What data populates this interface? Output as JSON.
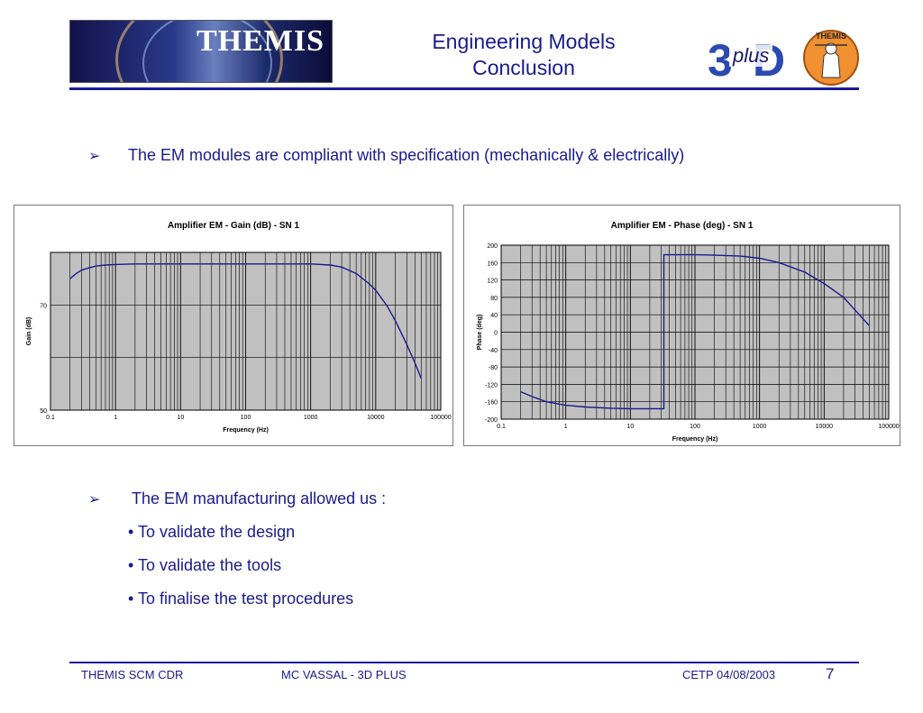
{
  "header": {
    "logo_text": "THEMIS",
    "title_line1": "Engineering Models",
    "title_line2": "Conclusion",
    "partner_logo_text": "plus",
    "mascot_logo_text": "THEMIS"
  },
  "bullets": {
    "first": "The EM modules are compliant with specification (mechanically & electrically)",
    "second": "The EM manufacturing allowed us :",
    "sub_items": [
      "• To validate the design",
      "• To validate the tools",
      "• To finalise the test procedures"
    ]
  },
  "footer": {
    "left": "THEMIS SCM CDR",
    "center": "MC VASSAL  - 3D PLUS",
    "right": "CETP 04/08/2003",
    "page": "7"
  },
  "colors": {
    "text": "#1a1a8c",
    "rule": "#1a1a9c",
    "plot_bg": "#c0c0c0",
    "series": "#1a1a90"
  },
  "chart_data": [
    {
      "type": "line",
      "title": "Amplifier EM - Gain (dB) - SN 1",
      "xlabel": "Frequency (Hz)",
      "ylabel": "Gain (dB)",
      "x_scale": "log",
      "xlim": [
        0.1,
        100000
      ],
      "ylim": [
        50,
        80
      ],
      "x_ticks": [
        "0.1",
        "1",
        "10",
        "100",
        "1000",
        "10000",
        "100000"
      ],
      "y_ticks": [
        "50",
        "70"
      ],
      "grid": true,
      "legend": "none",
      "series": [
        {
          "x": [
            0.2,
            0.25,
            0.3,
            0.4,
            0.5,
            0.7,
            1,
            2,
            5,
            10,
            100,
            1000,
            2000,
            3000,
            5000,
            8000,
            10000,
            15000,
            20000,
            30000,
            40000,
            50000
          ],
          "y": [
            75.0,
            76.0,
            76.6,
            77.1,
            77.4,
            77.6,
            77.7,
            77.8,
            77.8,
            77.8,
            77.8,
            77.8,
            77.6,
            77.2,
            76.0,
            74.0,
            72.8,
            69.8,
            67.0,
            62.5,
            59.0,
            56.0
          ]
        }
      ]
    },
    {
      "type": "line",
      "title": "Amplifier EM - Phase (deg) - SN 1",
      "xlabel": "Frequency (Hz)",
      "ylabel": "Phase (deg)",
      "x_scale": "log",
      "xlim": [
        0.1,
        100000
      ],
      "ylim": [
        -200,
        200
      ],
      "x_ticks": [
        "0.1",
        "1",
        "10",
        "100",
        "1000",
        "10000",
        "100000"
      ],
      "y_ticks": [
        "200",
        "160",
        "120",
        "80",
        "40",
        "0",
        "-40",
        "-80",
        "-120",
        "-160",
        "-200"
      ],
      "grid": true,
      "legend": "none",
      "series": [
        {
          "x": [
            0.2,
            0.3,
            0.5,
            1,
            2,
            5,
            10,
            20,
            33,
            33,
            50,
            100,
            200,
            500,
            1000,
            2000,
            5000,
            10000,
            20000,
            50000
          ],
          "y": [
            -137,
            -148,
            -160,
            -168,
            -172,
            -175,
            -176,
            -176,
            -176,
            178,
            178,
            178,
            177,
            175,
            170,
            160,
            138,
            112,
            80,
            15
          ]
        }
      ]
    }
  ]
}
